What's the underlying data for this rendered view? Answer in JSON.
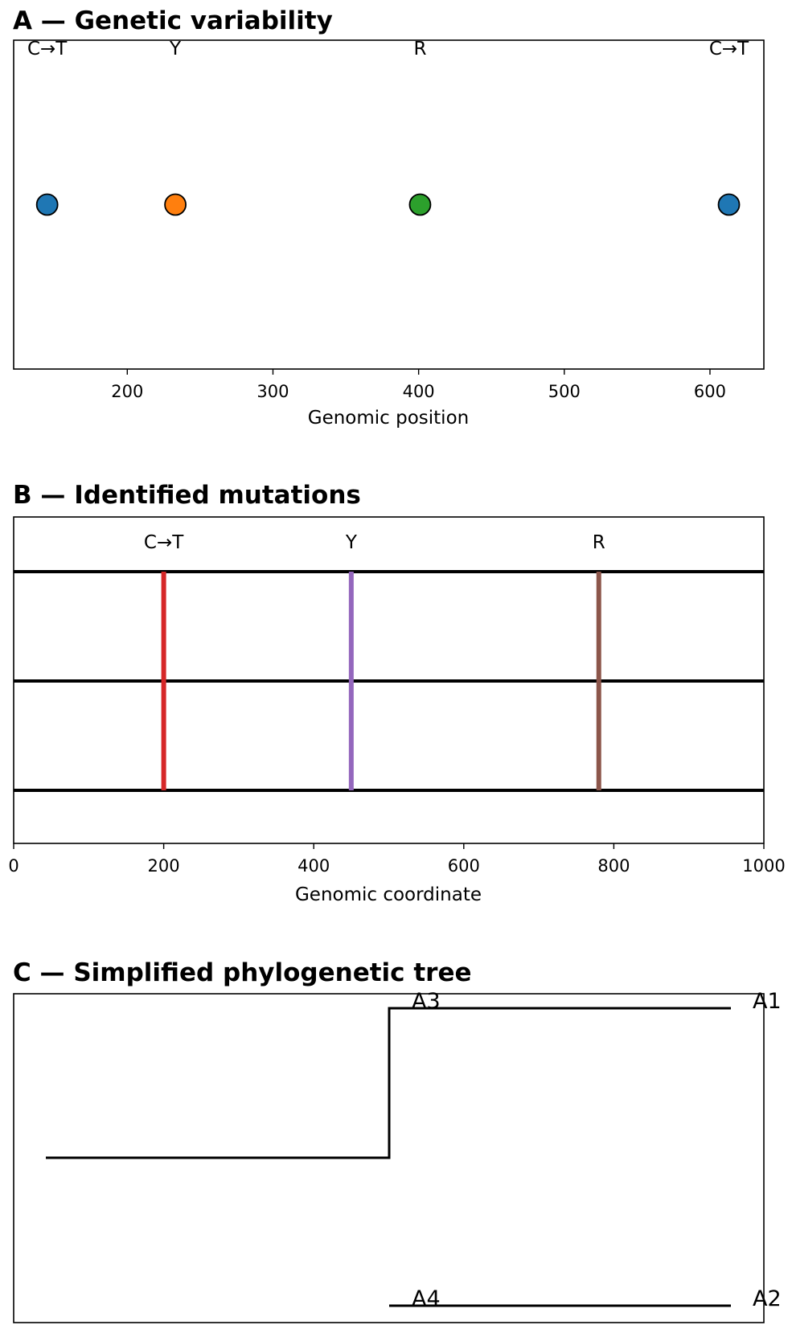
{
  "chart_data": [
    {
      "type": "scatter",
      "title": "A — Genetic variability",
      "xlabel": "Genomic position",
      "ylabel": "",
      "xlim": [
        122,
        637
      ],
      "xticks": [
        200,
        300,
        400,
        500,
        600
      ],
      "grid": false,
      "points": [
        {
          "x": 145,
          "label": "C→T",
          "color": "#1f77b4"
        },
        {
          "x": 233,
          "label": "Y",
          "color": "#ff7f0e"
        },
        {
          "x": 401,
          "label": "R",
          "color": "#2ca02c"
        },
        {
          "x": 613,
          "label": "C→T",
          "color": "#1f77b4"
        }
      ]
    },
    {
      "type": "line",
      "title": "B — Identified mutations",
      "xlabel": "Genomic coordinate",
      "ylabel": "",
      "xlim": [
        0,
        1000
      ],
      "xticks": [
        0,
        200,
        400,
        600,
        800,
        1000
      ],
      "grid": false,
      "sequences": 3,
      "mutations": [
        {
          "x": 200,
          "label": "C→T",
          "color": "#d62728"
        },
        {
          "x": 450,
          "label": "Y",
          "color": "#9467bd"
        },
        {
          "x": 780,
          "label": "R",
          "color": "#8c564b"
        }
      ]
    },
    {
      "type": "tree",
      "title": "C — Simplified phylogenetic tree",
      "leaves": [
        {
          "name": "A1",
          "inner_label": "A3"
        },
        {
          "name": "A2",
          "inner_label": "A4"
        }
      ]
    }
  ]
}
